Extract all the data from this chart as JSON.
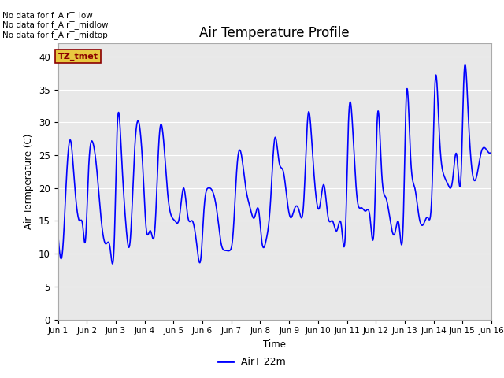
{
  "title": "Air Temperature Profile",
  "ylabel": "Air Termperature (C)",
  "xlabel": "Time",
  "legend_label": "AirT 22m",
  "ylim": [
    0,
    42
  ],
  "yticks": [
    0,
    5,
    10,
    15,
    20,
    25,
    30,
    35,
    40
  ],
  "line_color": "blue",
  "bg_color": "#e8e8e8",
  "no_data_texts": [
    "No data for f_AirT_low",
    "No data for f_AirT_midlow",
    "No data for f_AirT_midtop"
  ],
  "tz_label": "TZ_tmet",
  "xtick_labels": [
    "Jun 1",
    "Jun 2",
    "Jun 3",
    "Jun 4",
    "Jun 5",
    "Jun 6",
    "Jun 7",
    "Jun 8",
    "Jun 9",
    "Jun 10",
    "Jun 11",
    "Jun 12",
    "Jun 13",
    "Jun 14",
    "Jun 15",
    "Jun 16"
  ],
  "time_x": [
    1.0,
    1.05,
    1.15,
    1.3,
    1.45,
    1.55,
    1.65,
    1.75,
    1.85,
    1.95,
    2.05,
    2.2,
    2.35,
    2.5,
    2.65,
    2.8,
    2.95,
    3.05,
    3.2,
    3.35,
    3.5,
    3.65,
    3.8,
    3.95,
    4.05,
    4.2,
    4.35,
    4.5,
    4.65,
    4.8,
    4.95,
    5.05,
    5.2,
    5.35,
    5.5,
    5.65,
    5.8,
    5.95,
    6.05,
    6.2,
    6.35,
    6.5,
    6.65,
    6.8,
    6.95,
    7.05,
    7.2,
    7.35,
    7.5,
    7.65,
    7.8,
    7.95,
    8.05,
    8.2,
    8.35,
    8.5,
    8.65,
    8.8,
    8.95,
    9.05,
    9.2,
    9.35,
    9.5,
    9.65,
    9.8,
    9.95,
    10.05,
    10.2,
    10.35,
    10.5,
    10.65,
    10.8,
    10.95,
    11.05,
    11.2,
    11.35,
    11.5,
    11.65,
    11.8,
    11.95,
    12.05,
    12.2,
    12.35,
    12.5,
    12.65,
    12.8,
    12.95,
    13.05,
    13.2,
    13.35,
    13.5,
    13.65,
    13.8,
    13.95,
    14.05,
    14.2,
    14.35,
    14.5,
    14.65,
    14.8,
    14.95,
    15.05,
    15.2,
    15.35,
    15.5,
    15.65,
    15.8,
    16.0
  ],
  "temp_values": [
    13.0,
    10.5,
    10.0,
    22.0,
    27.0,
    22.0,
    17.0,
    15.0,
    14.5,
    12.0,
    22.0,
    27.0,
    22.5,
    15.0,
    11.5,
    11.0,
    12.0,
    29.0,
    25.0,
    14.5,
    12.0,
    25.5,
    30.0,
    22.0,
    14.0,
    13.5,
    13.5,
    27.5,
    27.5,
    19.0,
    15.5,
    15.0,
    15.5,
    20.0,
    15.5,
    15.0,
    11.5,
    9.5,
    16.5,
    20.0,
    19.5,
    16.5,
    11.5,
    10.5,
    10.5,
    12.5,
    23.5,
    25.0,
    20.0,
    17.0,
    15.5,
    16.5,
    12.0,
    12.0,
    17.5,
    27.5,
    24.0,
    22.5,
    17.5,
    15.5,
    17.0,
    16.5,
    17.5,
    31.0,
    26.0,
    18.0,
    17.0,
    20.5,
    15.5,
    15.0,
    13.5,
    14.5,
    13.5,
    29.5,
    29.0,
    18.5,
    17.0,
    16.5,
    15.5,
    15.0,
    30.5,
    22.5,
    18.5,
    15.0,
    13.0,
    14.5,
    15.0,
    33.5,
    25.0,
    20.0,
    15.5,
    14.5,
    15.5,
    20.5,
    36.0,
    28.0,
    22.0,
    20.5,
    21.0,
    25.0,
    22.0,
    37.0,
    31.0,
    22.0,
    22.0,
    25.5,
    26.0,
    25.5
  ]
}
